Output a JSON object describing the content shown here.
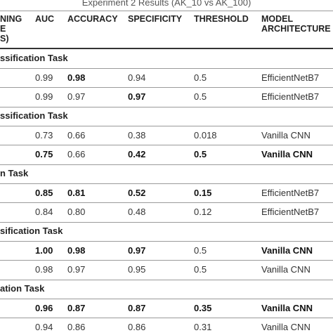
{
  "caption": "Experiment 2 Results (AK_10 vs AK_100)",
  "headers": {
    "training": [
      "NING",
      "E",
      "S)"
    ],
    "auc": "AUC",
    "accuracy": "ACCURACY",
    "specificity": "SPECIFICITY",
    "threshold": "THRESHOLD",
    "model": [
      "MODEL",
      "ARCHITECTURE"
    ]
  },
  "sections": [
    {
      "title": "ssification Task",
      "rows": [
        {
          "auc": "0.99",
          "accuracy": "0.98",
          "specificity": "0.94",
          "threshold": "0.5",
          "model": "EfficientNetB7",
          "bold": [
            "accuracy"
          ]
        },
        {
          "auc": "0.99",
          "accuracy": "0.97",
          "specificity": "0.97",
          "threshold": "0.5",
          "model": "EfficientNetB7",
          "bold": [
            "specificity"
          ]
        }
      ]
    },
    {
      "title": "ssification Task",
      "rows": [
        {
          "auc": "0.73",
          "accuracy": "0.66",
          "specificity": "0.38",
          "threshold": "0.018",
          "model": "Vanilla CNN",
          "bold": []
        },
        {
          "auc": "0.75",
          "accuracy": "0.66",
          "specificity": "0.42",
          "threshold": "0.5",
          "model": "Vanilla CNN",
          "bold": [
            "auc",
            "specificity",
            "threshold",
            "model"
          ]
        }
      ]
    },
    {
      "title": "n Task",
      "rows": [
        {
          "auc": "0.85",
          "accuracy": "0.81",
          "specificity": "0.52",
          "threshold": "0.15",
          "model": "EfficientNetB7",
          "bold": [
            "auc",
            "accuracy",
            "specificity",
            "threshold"
          ]
        },
        {
          "auc": "0.84",
          "accuracy": "0.80",
          "specificity": "0.48",
          "threshold": "0.12",
          "model": "EfficientNetB7",
          "bold": []
        }
      ]
    },
    {
      "title": "sification Task",
      "rows": [
        {
          "auc": "1.00",
          "accuracy": "0.98",
          "specificity": "0.97",
          "threshold": "0.5",
          "model": "Vanilla CNN",
          "bold": [
            "auc",
            "accuracy",
            "specificity",
            "model"
          ]
        },
        {
          "auc": "0.98",
          "accuracy": "0.97",
          "specificity": "0.95",
          "threshold": "0.5",
          "model": "Vanilla CNN",
          "bold": []
        }
      ]
    },
    {
      "title": "ation Task",
      "rows": [
        {
          "auc": "0.96",
          "accuracy": "0.87",
          "specificity": "0.87",
          "threshold": "0.35",
          "model": "Vanilla CNN",
          "bold": [
            "auc",
            "accuracy",
            "specificity",
            "threshold",
            "model"
          ]
        },
        {
          "auc": "0.94",
          "accuracy": "0.86",
          "specificity": "0.86",
          "threshold": "0.31",
          "model": "Vanilla CNN",
          "bold": []
        }
      ]
    }
  ]
}
